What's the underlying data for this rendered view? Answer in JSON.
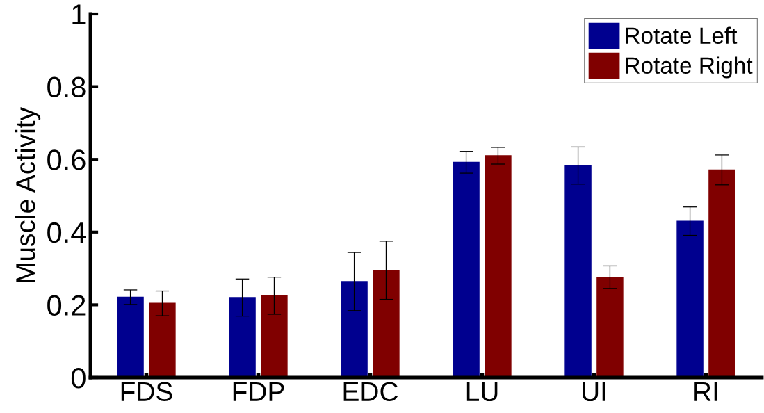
{
  "chart_data": {
    "type": "bar",
    "ylabel": "Muscle Activity",
    "categories": [
      "FDS",
      "FDP",
      "EDC",
      "LU",
      "UI",
      "RI"
    ],
    "series": [
      {
        "name": "Rotate Left",
        "color": "#00008f",
        "values": [
          0.221,
          0.22,
          0.264,
          0.592,
          0.583,
          0.43
        ],
        "errors": [
          0.02,
          0.051,
          0.08,
          0.03,
          0.051,
          0.039
        ]
      },
      {
        "name": "Rotate Right",
        "color": "#800000",
        "values": [
          0.204,
          0.225,
          0.295,
          0.61,
          0.276,
          0.571
        ],
        "errors": [
          0.034,
          0.051,
          0.08,
          0.023,
          0.031,
          0.041
        ]
      }
    ],
    "ylim": [
      0,
      1
    ],
    "yticks": [
      0,
      0.2,
      0.4,
      0.6,
      0.8,
      1
    ],
    "grid": false,
    "legend": "top right"
  }
}
